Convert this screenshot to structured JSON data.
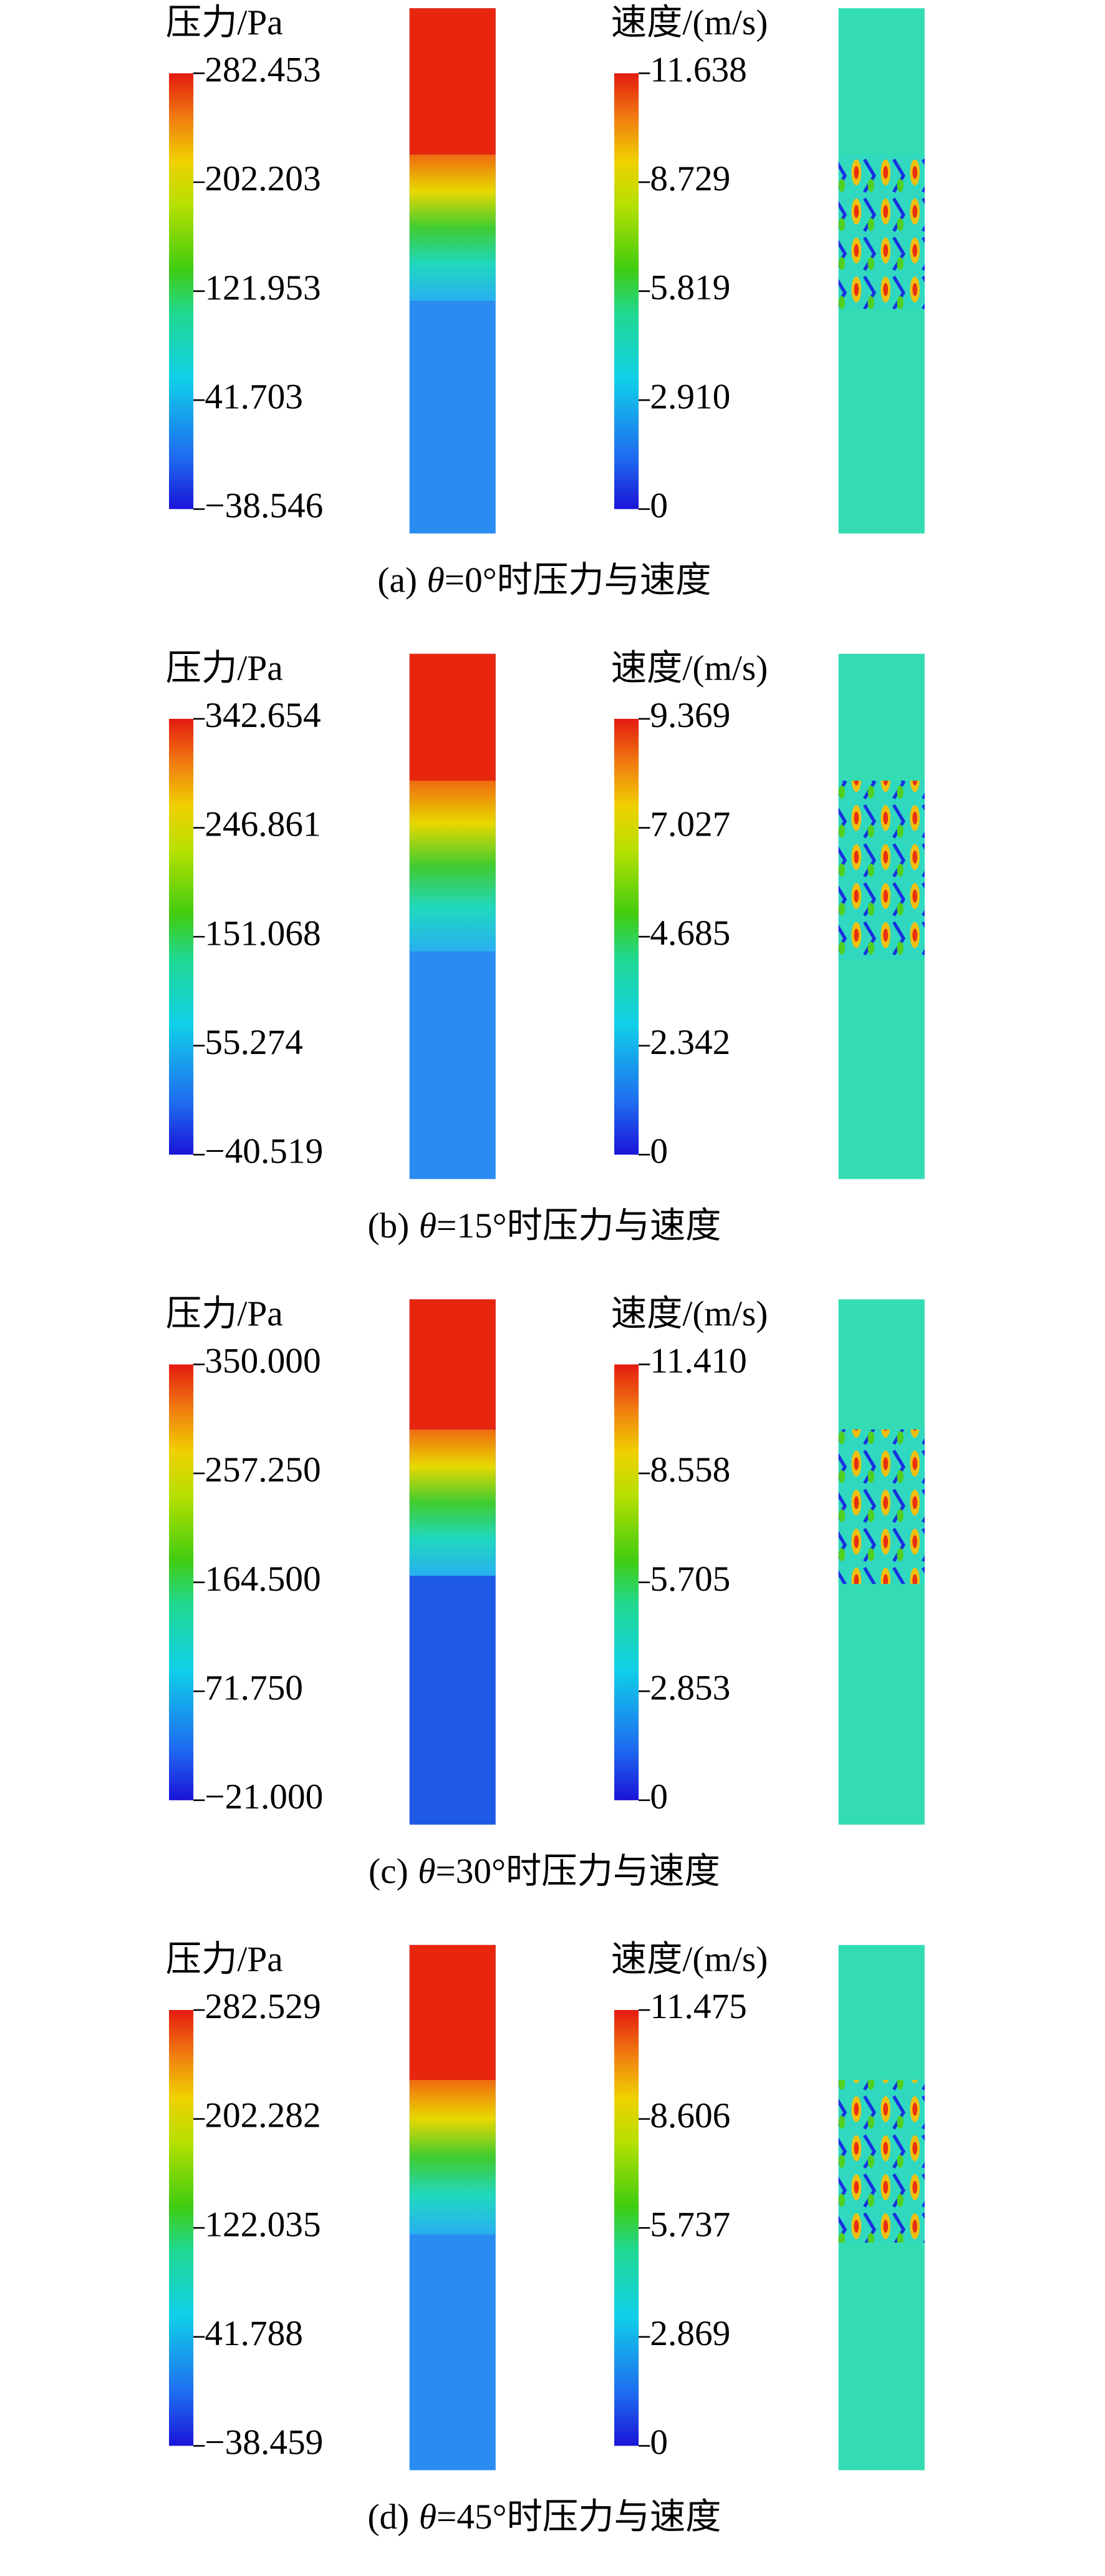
{
  "panels": [
    {
      "caption": {
        "label": "(a)",
        "symbol": "θ",
        "text": "=0°时压力与速度"
      },
      "pressure": {
        "title": "压力/Pa",
        "range": [
          -38.546,
          282.453
        ],
        "ticks": [
          282.453,
          202.203,
          121.953,
          41.703,
          {
            "value": -38.546,
            "label": "−38.546"
          }
        ]
      },
      "velocity": {
        "title": "速度/(m/s)",
        "range": [
          0,
          11.638
        ],
        "ticks": [
          11.638,
          8.729,
          5.819,
          {
            "value": 2.91,
            "label": "2.910"
          },
          0
        ]
      }
    },
    {
      "caption": {
        "label": "(b)",
        "symbol": "θ",
        "text": "=15°时压力与速度"
      },
      "pressure": {
        "title": "压力/Pa",
        "range": [
          -40.519,
          342.654
        ],
        "ticks": [
          342.654,
          246.861,
          151.068,
          55.274,
          {
            "value": -40.519,
            "label": "−40.519"
          }
        ]
      },
      "velocity": {
        "title": "速度/(m/s)",
        "range": [
          0,
          9.369
        ],
        "ticks": [
          9.369,
          7.027,
          4.685,
          2.342,
          0
        ]
      }
    },
    {
      "caption": {
        "label": "(c)",
        "symbol": "θ",
        "text": "=30°时压力与速度"
      },
      "pressure": {
        "title": "压力/Pa",
        "range": [
          -21,
          350
        ],
        "ticks": [
          {
            "value": 350,
            "label": "350.000"
          },
          {
            "value": 257.25,
            "label": "257.250"
          },
          {
            "value": 164.5,
            "label": "164.500"
          },
          {
            "value": 71.75,
            "label": "71.750"
          },
          {
            "value": -21,
            "label": "−21.000"
          }
        ]
      },
      "velocity": {
        "title": "速度/(m/s)",
        "range": [
          0,
          11.41
        ],
        "ticks": [
          {
            "value": 11.41,
            "label": "11.410"
          },
          8.558,
          5.705,
          2.853,
          0
        ]
      }
    },
    {
      "caption": {
        "label": "(d)",
        "symbol": "θ",
        "text": "=45°时压力与速度"
      },
      "pressure": {
        "title": "压力/Pa",
        "range": [
          -38.459,
          282.529
        ],
        "ticks": [
          282.529,
          202.282,
          122.035,
          41.788,
          {
            "value": -38.459,
            "label": "−38.459"
          }
        ]
      },
      "velocity": {
        "title": "速度/(m/s)",
        "range": [
          0,
          11.475
        ],
        "ticks": [
          11.475,
          8.606,
          5.737,
          2.869,
          0
        ]
      }
    }
  ]
}
